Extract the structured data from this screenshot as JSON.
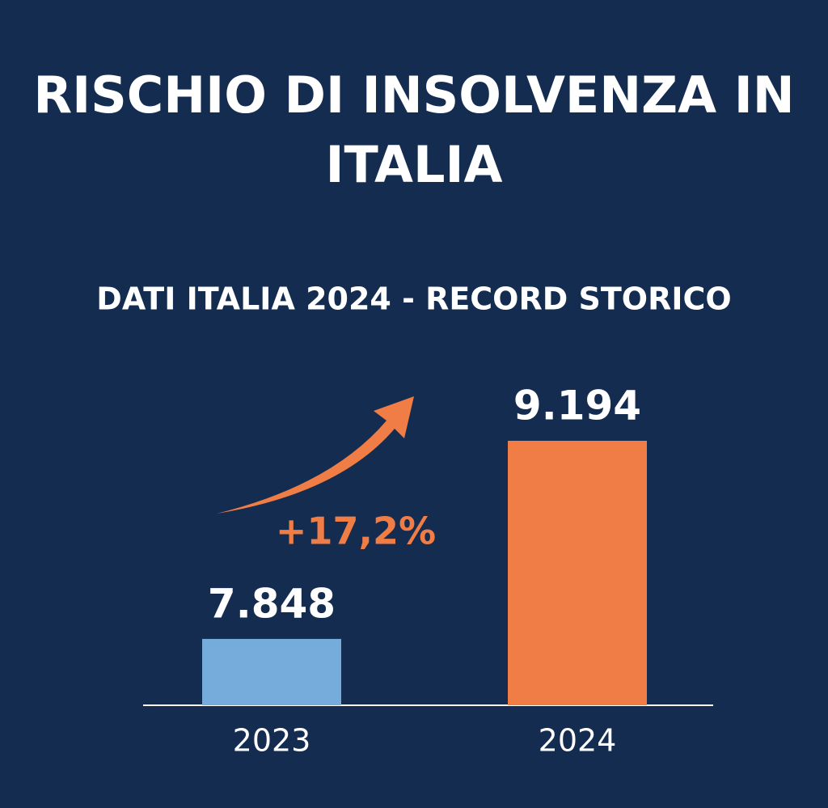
{
  "chart_data": {
    "type": "bar",
    "title": "RISCHIO DI INSOLVENZA IN ITALIA",
    "subtitle": "DATI ITALIA 2024 - RECORD STORICO",
    "categories": [
      "2023",
      "2024"
    ],
    "values": [
      7848,
      9194
    ],
    "value_labels": [
      "7.848",
      "9.194"
    ],
    "colors": [
      "#76acdc",
      "#ef7d45"
    ],
    "annotation": "+17,2%",
    "annotation_color": "#ef7d45"
  }
}
